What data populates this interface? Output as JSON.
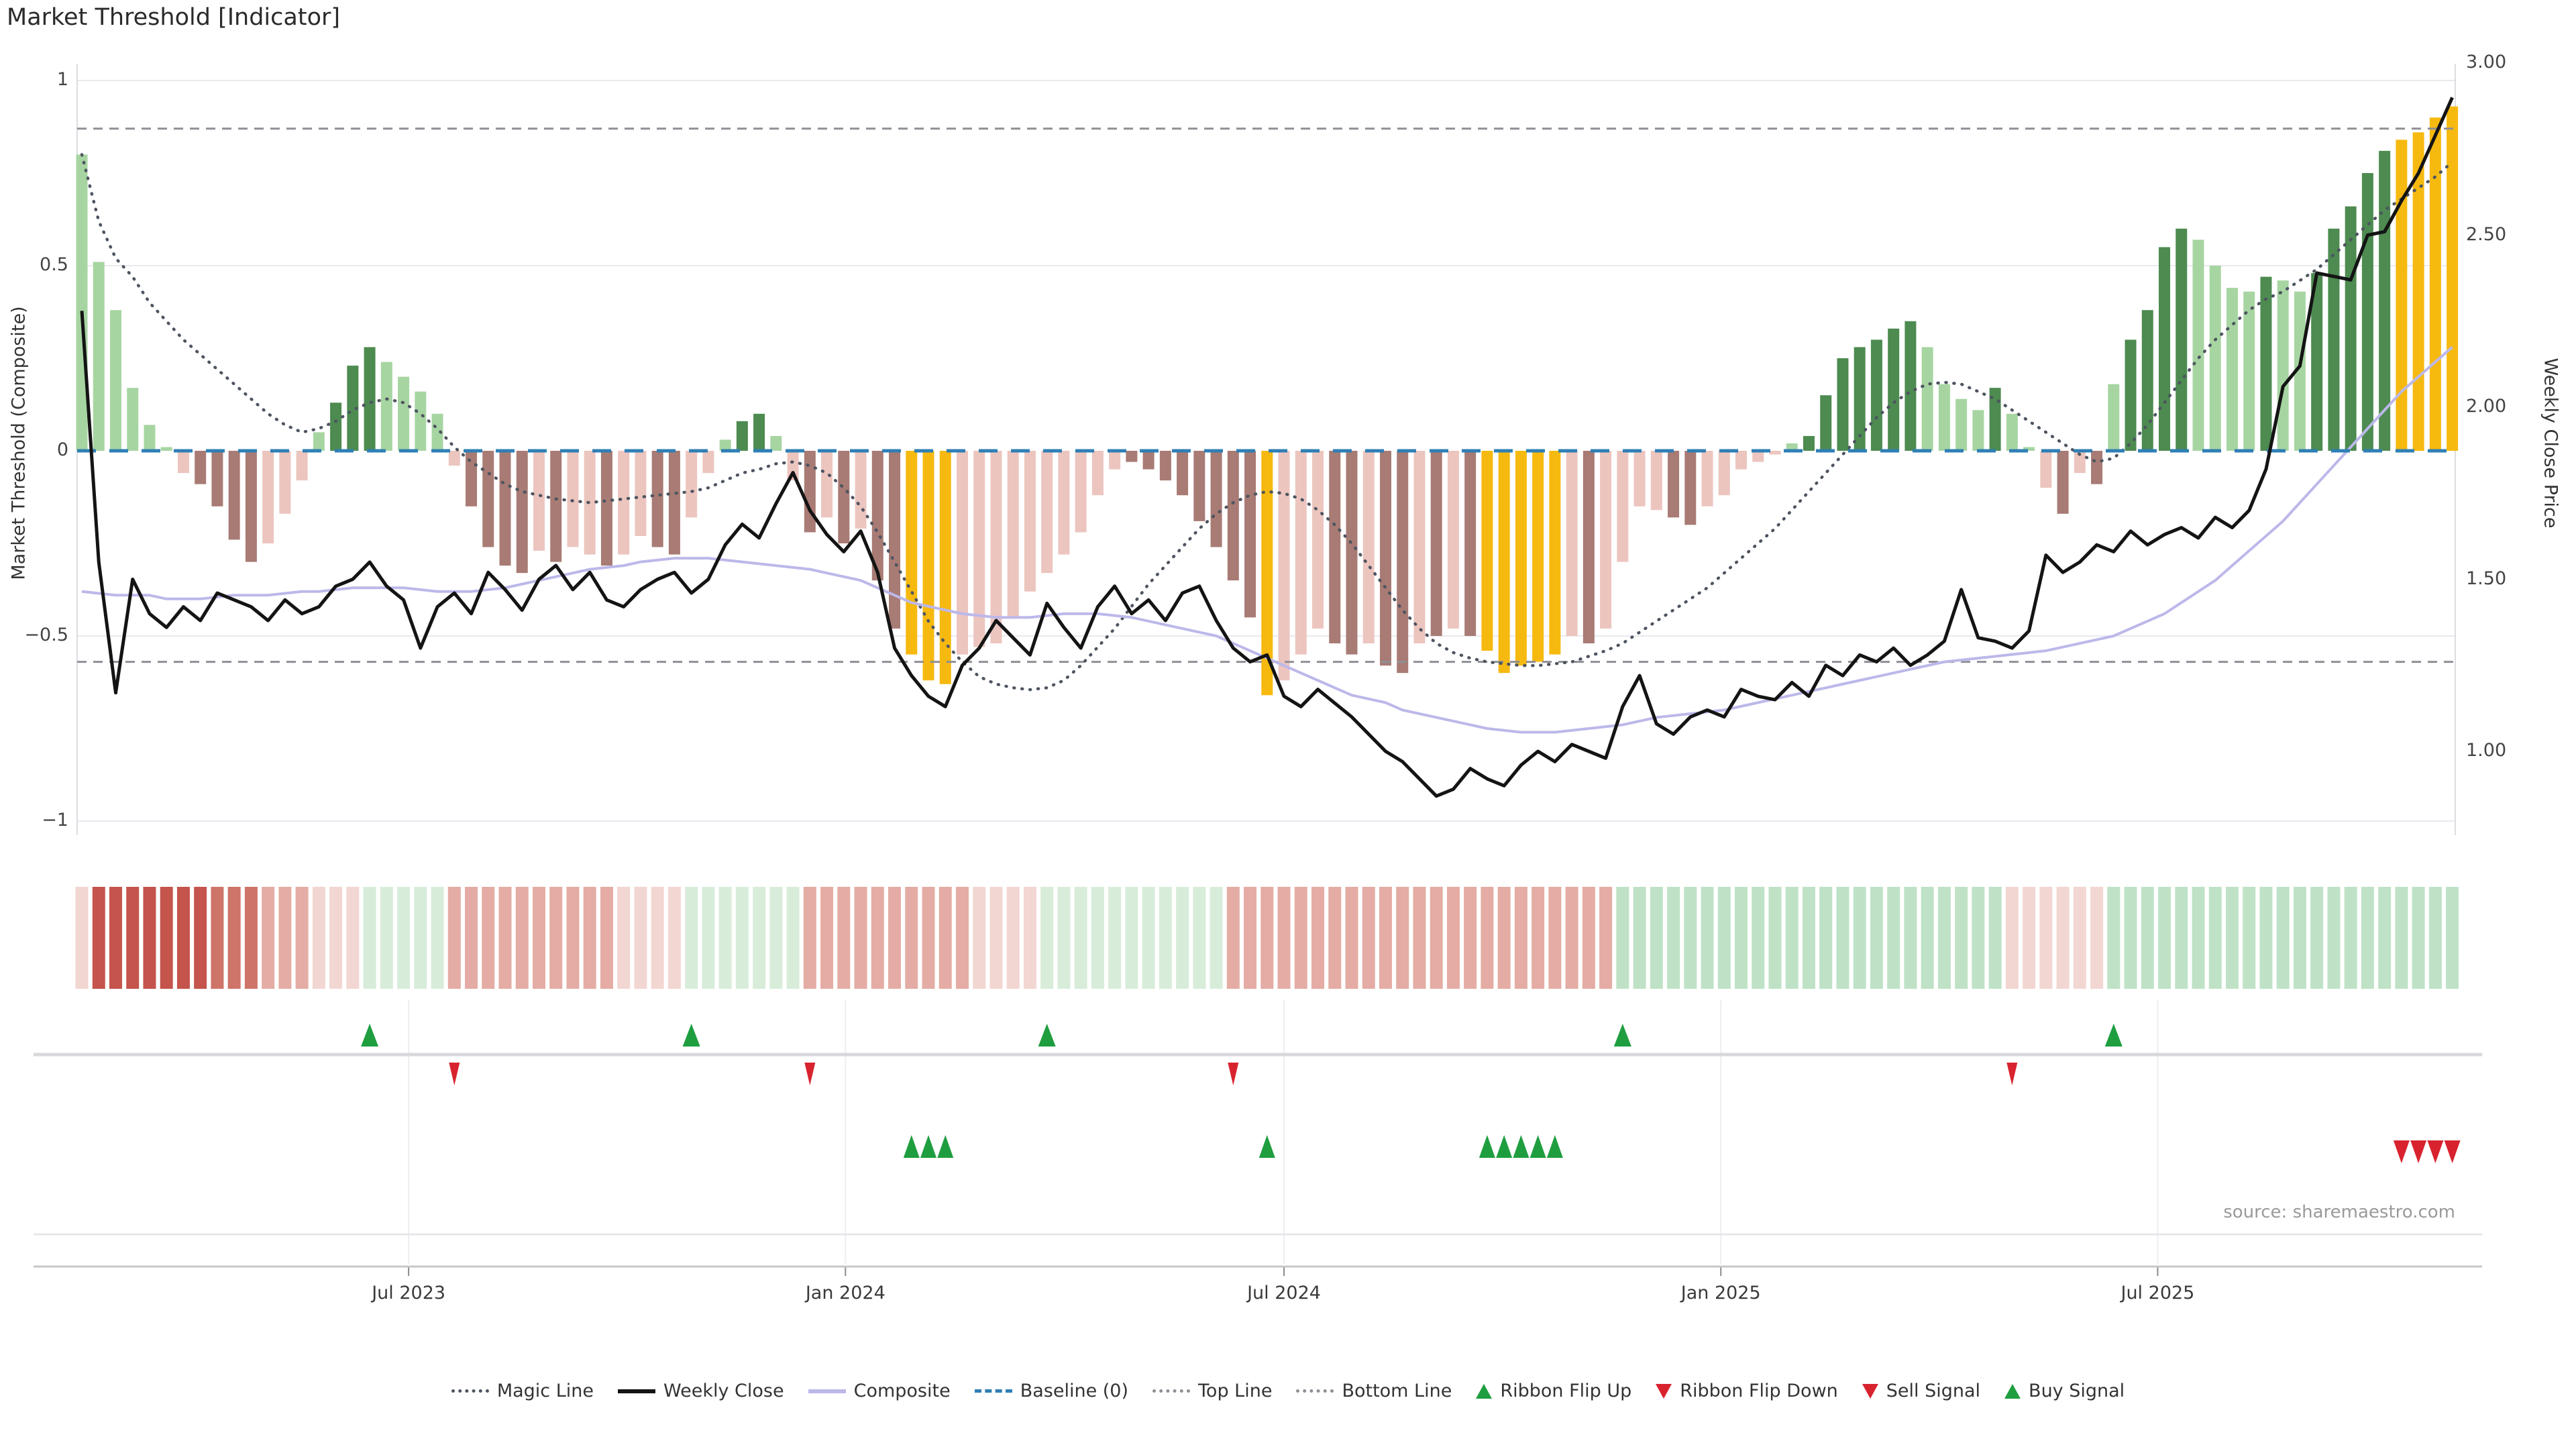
{
  "header": {
    "title": "Market Threshold [Indicator]"
  },
  "source_text": "source: sharemaestro.com",
  "axes": {
    "left": {
      "title": "Market Threshold (Composite)",
      "ticks": [
        "1",
        "0.5",
        "0",
        "−0.5",
        "−1"
      ],
      "tick_values": [
        1,
        0.5,
        0,
        -0.5,
        -1
      ]
    },
    "right": {
      "title": "Weekly Close Price",
      "ticks": [
        "3.00",
        "2.50",
        "2.00",
        "1.50",
        "1.00"
      ],
      "tick_values": [
        3.0,
        2.5,
        2.0,
        1.5,
        1.0
      ]
    },
    "x": {
      "ticks": [
        "Jul 2023",
        "Jan 2024",
        "Jul 2024",
        "Jan 2025",
        "Jul 2025"
      ],
      "tick_weeks": [
        19.3,
        45.1,
        71.0,
        96.8,
        122.6
      ]
    }
  },
  "colors": {
    "bar": {
      "LG": "#a7d5a2",
      "DG": "#4d8b50",
      "PK": "#ecc5bf",
      "DR": "#a87b74",
      "GD": "#f6b90f"
    },
    "ribbon": {
      "p4": "#c4544c",
      "p3": "#cf7468",
      "p2": "#e4aca4",
      "p1": "#f2d6d2",
      "g1": "#d8ecda",
      "g2": "#bfe2c6"
    },
    "magic_line": "#4e5560",
    "weekly_close": "#141414",
    "composite": "#bcb8ea",
    "baseline": "#2f7fb5",
    "band_lines": "#8f8f96",
    "grid": "#e9e9f0",
    "spine": "#dcdce2",
    "signal_up": "#1f9e40",
    "signal_down": "#d8232e",
    "axis_line": "#c7c7cc",
    "row_line": "#d8d8dc",
    "sub_line": "#e3e3e8"
  },
  "chart_data": {
    "type": "bar",
    "subtype": "combo-bar-line-indicator",
    "x_unit": "week_index",
    "n_weeks": 141,
    "ylim_left": [
      -1,
      1
    ],
    "ylim_right": [
      0.75,
      3.0
    ],
    "top_line": 0.87,
    "bottom_line": -0.57,
    "baseline": 0,
    "threshold_bars": {
      "values": [
        0.8,
        0.51,
        0.38,
        0.17,
        0.07,
        0.01,
        -0.06,
        -0.09,
        -0.15,
        -0.24,
        -0.3,
        -0.25,
        -0.17,
        -0.08,
        0.05,
        0.13,
        0.23,
        0.28,
        0.24,
        0.2,
        0.16,
        0.1,
        -0.04,
        -0.15,
        -0.26,
        -0.31,
        -0.33,
        -0.27,
        -0.3,
        -0.26,
        -0.28,
        -0.31,
        -0.28,
        -0.23,
        -0.26,
        -0.28,
        -0.18,
        -0.06,
        0.03,
        0.08,
        0.1,
        0.04,
        -0.08,
        -0.22,
        -0.18,
        -0.25,
        -0.21,
        -0.35,
        -0.48,
        -0.55,
        -0.62,
        -0.63,
        -0.55,
        -0.53,
        -0.52,
        -0.45,
        -0.38,
        -0.33,
        -0.28,
        -0.22,
        -0.12,
        -0.05,
        -0.03,
        -0.05,
        -0.08,
        -0.12,
        -0.19,
        -0.26,
        -0.35,
        -0.45,
        -0.66,
        -0.62,
        -0.55,
        -0.48,
        -0.52,
        -0.55,
        -0.52,
        -0.58,
        -0.6,
        -0.52,
        -0.5,
        -0.48,
        -0.5,
        -0.54,
        -0.6,
        -0.58,
        -0.57,
        -0.55,
        -0.5,
        -0.52,
        -0.48,
        -0.3,
        -0.15,
        -0.16,
        -0.18,
        -0.2,
        -0.15,
        -0.12,
        -0.05,
        -0.03,
        -0.01,
        0.02,
        0.04,
        0.15,
        0.25,
        0.28,
        0.3,
        0.33,
        0.35,
        0.28,
        0.18,
        0.14,
        0.11,
        0.17,
        0.1,
        0.01,
        -0.1,
        -0.17,
        -0.06,
        -0.09,
        0.18,
        0.3,
        0.38,
        0.55,
        0.6,
        0.57,
        0.5,
        0.44,
        0.43,
        0.47,
        0.46,
        0.43,
        0.48,
        0.6,
        0.66,
        0.75,
        0.81,
        0.84,
        0.86,
        0.9,
        0.93
      ],
      "colors": [
        "LG",
        "LG",
        "LG",
        "LG",
        "LG",
        "LG",
        "PK",
        "DR",
        "DR",
        "DR",
        "DR",
        "PK",
        "PK",
        "PK",
        "LG",
        "DG",
        "DG",
        "DG",
        "LG",
        "LG",
        "LG",
        "LG",
        "PK",
        "DR",
        "DR",
        "DR",
        "DR",
        "PK",
        "DR",
        "PK",
        "PK",
        "DR",
        "PK",
        "PK",
        "DR",
        "DR",
        "PK",
        "PK",
        "LG",
        "DG",
        "DG",
        "LG",
        "PK",
        "DR",
        "PK",
        "DR",
        "PK",
        "DR",
        "DR",
        "GD",
        "GD",
        "GD",
        "PK",
        "PK",
        "PK",
        "PK",
        "PK",
        "PK",
        "PK",
        "PK",
        "PK",
        "PK",
        "DR",
        "DR",
        "DR",
        "DR",
        "DR",
        "DR",
        "DR",
        "DR",
        "GD",
        "PK",
        "PK",
        "PK",
        "DR",
        "DR",
        "PK",
        "DR",
        "DR",
        "PK",
        "DR",
        "PK",
        "DR",
        "GD",
        "GD",
        "GD",
        "GD",
        "GD",
        "PK",
        "DR",
        "PK",
        "PK",
        "PK",
        "PK",
        "DR",
        "DR",
        "PK",
        "PK",
        "PK",
        "PK",
        "PK",
        "LG",
        "DG",
        "DG",
        "DG",
        "DG",
        "DG",
        "DG",
        "DG",
        "LG",
        "LG",
        "LG",
        "LG",
        "DG",
        "LG",
        "LG",
        "PK",
        "DR",
        "PK",
        "DR",
        "LG",
        "DG",
        "DG",
        "DG",
        "DG",
        "LG",
        "LG",
        "LG",
        "LG",
        "DG",
        "LG",
        "LG",
        "DG",
        "DG",
        "DG",
        "DG",
        "DG",
        "GD",
        "GD",
        "GD",
        "GD"
      ]
    },
    "weekly_close": [
      2.28,
      1.55,
      1.17,
      1.5,
      1.4,
      1.36,
      1.42,
      1.38,
      1.46,
      1.44,
      1.42,
      1.38,
      1.44,
      1.4,
      1.42,
      1.48,
      1.5,
      1.55,
      1.48,
      1.44,
      1.3,
      1.42,
      1.46,
      1.4,
      1.52,
      1.47,
      1.41,
      1.5,
      1.54,
      1.47,
      1.52,
      1.44,
      1.42,
      1.47,
      1.5,
      1.52,
      1.46,
      1.5,
      1.6,
      1.66,
      1.62,
      1.72,
      1.81,
      1.7,
      1.63,
      1.58,
      1.64,
      1.52,
      1.3,
      1.22,
      1.16,
      1.13,
      1.25,
      1.3,
      1.38,
      1.33,
      1.28,
      1.43,
      1.36,
      1.3,
      1.42,
      1.48,
      1.4,
      1.44,
      1.38,
      1.46,
      1.48,
      1.38,
      1.3,
      1.26,
      1.28,
      1.16,
      1.13,
      1.18,
      1.14,
      1.1,
      1.05,
      1.0,
      0.97,
      0.92,
      0.87,
      0.89,
      0.95,
      0.92,
      0.9,
      0.96,
      1.0,
      0.97,
      1.02,
      1.0,
      0.98,
      1.13,
      1.22,
      1.08,
      1.05,
      1.1,
      1.12,
      1.1,
      1.18,
      1.16,
      1.15,
      1.2,
      1.16,
      1.25,
      1.22,
      1.28,
      1.26,
      1.3,
      1.25,
      1.28,
      1.32,
      1.47,
      1.33,
      1.32,
      1.3,
      1.35,
      1.57,
      1.52,
      1.55,
      1.6,
      1.58,
      1.64,
      1.6,
      1.63,
      1.65,
      1.62,
      1.68,
      1.65,
      1.7,
      1.82,
      2.06,
      2.12,
      2.39,
      2.38,
      2.37,
      2.5,
      2.51,
      2.6,
      2.68,
      2.79,
      2.9
    ],
    "composite": [
      -0.38,
      -0.385,
      -0.39,
      -0.39,
      -0.39,
      -0.4,
      -0.4,
      -0.4,
      -0.395,
      -0.39,
      -0.39,
      -0.39,
      -0.385,
      -0.38,
      -0.38,
      -0.375,
      -0.37,
      -0.37,
      -0.37,
      -0.37,
      -0.375,
      -0.38,
      -0.38,
      -0.38,
      -0.375,
      -0.37,
      -0.36,
      -0.35,
      -0.34,
      -0.33,
      -0.32,
      -0.315,
      -0.31,
      -0.3,
      -0.295,
      -0.29,
      -0.29,
      -0.29,
      -0.295,
      -0.3,
      -0.305,
      -0.31,
      -0.315,
      -0.32,
      -0.33,
      -0.34,
      -0.35,
      -0.37,
      -0.39,
      -0.41,
      -0.42,
      -0.43,
      -0.44,
      -0.445,
      -0.45,
      -0.45,
      -0.45,
      -0.445,
      -0.44,
      -0.44,
      -0.44,
      -0.445,
      -0.45,
      -0.46,
      -0.47,
      -0.48,
      -0.49,
      -0.5,
      -0.52,
      -0.54,
      -0.56,
      -0.58,
      -0.6,
      -0.62,
      -0.64,
      -0.66,
      -0.67,
      -0.68,
      -0.7,
      -0.71,
      -0.72,
      -0.73,
      -0.74,
      -0.75,
      -0.755,
      -0.76,
      -0.76,
      -0.76,
      -0.755,
      -0.75,
      -0.745,
      -0.74,
      -0.73,
      -0.72,
      -0.715,
      -0.71,
      -0.705,
      -0.7,
      -0.69,
      -0.68,
      -0.67,
      -0.66,
      -0.65,
      -0.64,
      -0.63,
      -0.62,
      -0.61,
      -0.6,
      -0.59,
      -0.58,
      -0.57,
      -0.565,
      -0.56,
      -0.555,
      -0.55,
      -0.545,
      -0.54,
      -0.53,
      -0.52,
      -0.51,
      -0.5,
      -0.48,
      -0.46,
      -0.44,
      -0.41,
      -0.38,
      -0.35,
      -0.31,
      -0.27,
      -0.23,
      -0.19,
      -0.14,
      -0.09,
      -0.04,
      0.01,
      0.06,
      0.11,
      0.16,
      0.2,
      0.24,
      0.28
    ],
    "magic_line": [
      0.8,
      0.62,
      0.52,
      0.47,
      0.4,
      0.35,
      0.3,
      0.26,
      0.22,
      0.18,
      0.14,
      0.1,
      0.07,
      0.05,
      0.06,
      0.08,
      0.11,
      0.13,
      0.14,
      0.13,
      0.1,
      0.06,
      0.01,
      -0.03,
      -0.06,
      -0.09,
      -0.11,
      -0.12,
      -0.13,
      -0.135,
      -0.14,
      -0.135,
      -0.13,
      -0.125,
      -0.12,
      -0.115,
      -0.11,
      -0.1,
      -0.08,
      -0.06,
      -0.05,
      -0.035,
      -0.03,
      -0.04,
      -0.06,
      -0.1,
      -0.15,
      -0.22,
      -0.3,
      -0.38,
      -0.46,
      -0.52,
      -0.57,
      -0.61,
      -0.63,
      -0.64,
      -0.645,
      -0.64,
      -0.62,
      -0.58,
      -0.53,
      -0.48,
      -0.42,
      -0.36,
      -0.31,
      -0.26,
      -0.21,
      -0.17,
      -0.14,
      -0.12,
      -0.11,
      -0.115,
      -0.13,
      -0.16,
      -0.2,
      -0.25,
      -0.31,
      -0.37,
      -0.43,
      -0.48,
      -0.52,
      -0.545,
      -0.56,
      -0.57,
      -0.575,
      -0.58,
      -0.58,
      -0.575,
      -0.57,
      -0.555,
      -0.54,
      -0.52,
      -0.49,
      -0.46,
      -0.43,
      -0.4,
      -0.37,
      -0.33,
      -0.29,
      -0.25,
      -0.21,
      -0.16,
      -0.11,
      -0.06,
      -0.01,
      0.04,
      0.09,
      0.13,
      0.16,
      0.18,
      0.185,
      0.18,
      0.16,
      0.14,
      0.11,
      0.08,
      0.05,
      0.02,
      -0.01,
      -0.03,
      -0.02,
      0.02,
      0.07,
      0.13,
      0.19,
      0.25,
      0.3,
      0.34,
      0.38,
      0.41,
      0.43,
      0.46,
      0.49,
      0.53,
      0.57,
      0.61,
      0.65,
      0.68,
      0.71,
      0.74,
      0.78
    ],
    "ribbon": [
      "p1",
      "p4",
      "p4",
      "p4",
      "p4",
      "p4",
      "p4",
      "p4",
      "p3",
      "p3",
      "p3",
      "p2",
      "p2",
      "p2",
      "p1",
      "p1",
      "p1",
      "g1",
      "g1",
      "g1",
      "g1",
      "g1",
      "p2",
      "p2",
      "p2",
      "p2",
      "p2",
      "p2",
      "p2",
      "p2",
      "p2",
      "p2",
      "p1",
      "p1",
      "p1",
      "p1",
      "g1",
      "g1",
      "g1",
      "g1",
      "g1",
      "g1",
      "g1",
      "p2",
      "p2",
      "p2",
      "p2",
      "p2",
      "p2",
      "p2",
      "p2",
      "p2",
      "p2",
      "p1",
      "p1",
      "p1",
      "p1",
      "g1",
      "g1",
      "g1",
      "g1",
      "g1",
      "g1",
      "g1",
      "g1",
      "g1",
      "g1",
      "g1",
      "p2",
      "p2",
      "p2",
      "p2",
      "p2",
      "p2",
      "p2",
      "p2",
      "p2",
      "p2",
      "p2",
      "p2",
      "p2",
      "p2",
      "p2",
      "p2",
      "p2",
      "p2",
      "p2",
      "p2",
      "p2",
      "p2",
      "p2",
      "g2",
      "g2",
      "g2",
      "g2",
      "g2",
      "g2",
      "g2",
      "g2",
      "g2",
      "g2",
      "g2",
      "g2",
      "g2",
      "g2",
      "g2",
      "g2",
      "g2",
      "g2",
      "g2",
      "g2",
      "g2",
      "g2",
      "g2",
      "p1",
      "p1",
      "p1",
      "p1",
      "p1",
      "p1",
      "g2",
      "g2",
      "g2",
      "g2",
      "g2",
      "g2",
      "g2",
      "g2",
      "g2",
      "g2",
      "g2",
      "g2",
      "g2",
      "g2",
      "g2",
      "g2",
      "g2",
      "g2",
      "g2",
      "g2",
      "g2"
    ],
    "signals": {
      "ribbon_flip_up_weeks": [
        17,
        36,
        57,
        91,
        120
      ],
      "ribbon_flip_down_weeks": [
        22,
        43,
        68,
        114
      ],
      "buy_signal_weeks": [
        49,
        50,
        51,
        70,
        83,
        84,
        85,
        86,
        87
      ],
      "sell_signal_weeks": [
        137,
        138,
        139,
        140
      ]
    }
  },
  "legend": [
    {
      "label": "Magic Line",
      "glyph": "dotted",
      "color": "#4e5560"
    },
    {
      "label": "Weekly Close",
      "glyph": "solid",
      "color": "#141414"
    },
    {
      "label": "Composite",
      "glyph": "solid",
      "color": "#bcb8ea"
    },
    {
      "label": "Baseline (0)",
      "glyph": "dashed",
      "color": "#2f7fb5"
    },
    {
      "label": "Top Line",
      "glyph": "dotted",
      "color": "#8f8f96"
    },
    {
      "label": "Bottom Line",
      "glyph": "dotted",
      "color": "#8f8f96"
    },
    {
      "label": "Ribbon Flip Up",
      "glyph": "tri-up",
      "color": "#1f9e40"
    },
    {
      "label": "Ribbon Flip Down",
      "glyph": "tri-down",
      "color": "#d8232e"
    },
    {
      "label": "Sell Signal",
      "glyph": "tri-down",
      "color": "#d8232e"
    },
    {
      "label": "Buy Signal",
      "glyph": "tri-up",
      "color": "#1f9e40"
    }
  ]
}
